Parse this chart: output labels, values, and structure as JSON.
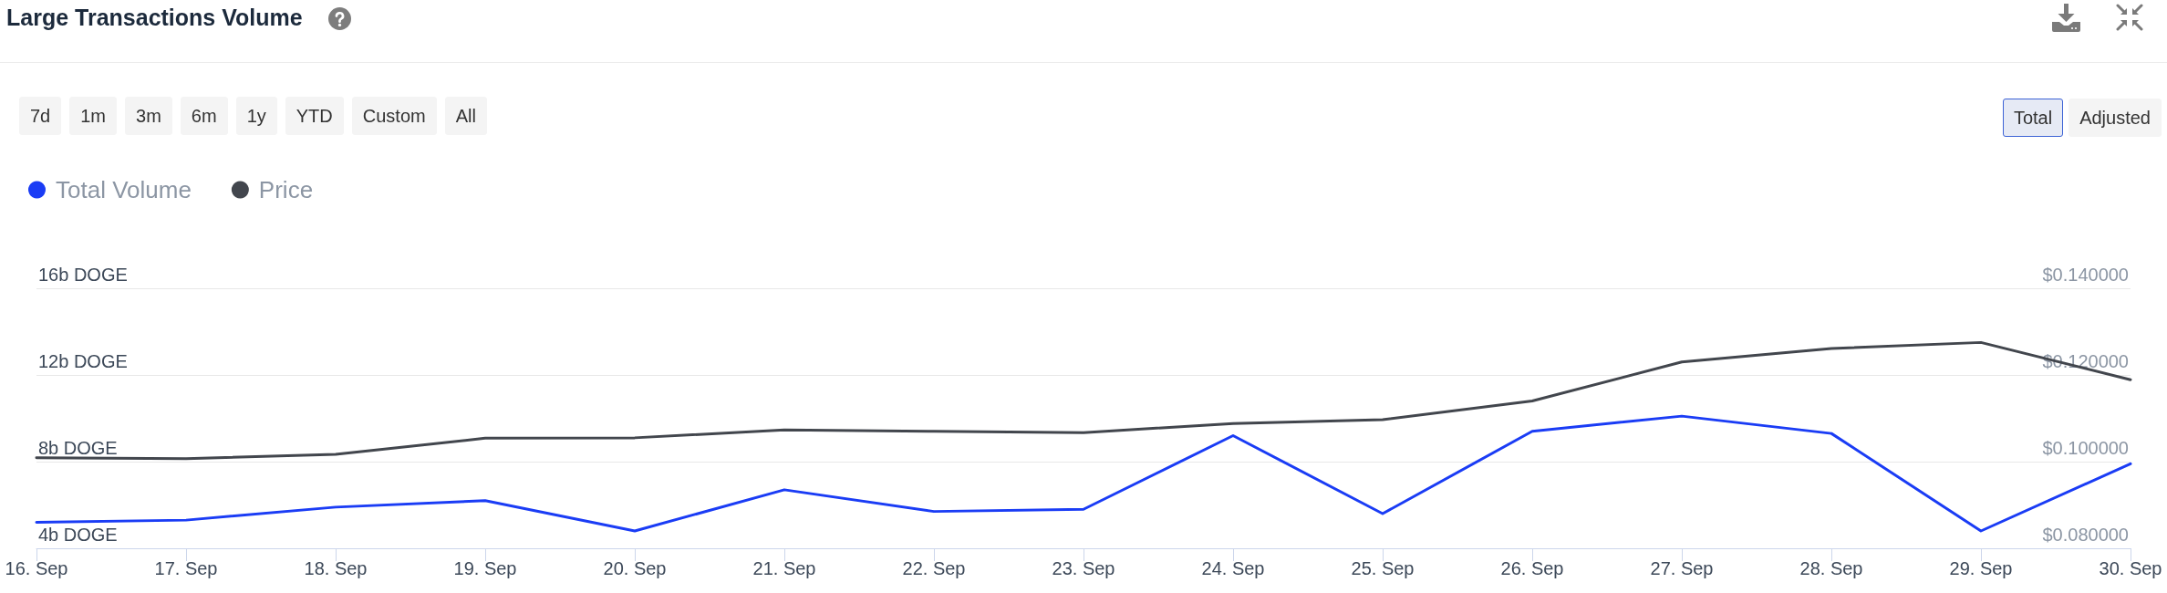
{
  "chart_data": {
    "type": "line",
    "title": "Large Transactions Volume",
    "annotations": [
      "7d",
      "1m",
      "3m",
      "6m",
      "1y",
      "YTD",
      "Custom",
      "All",
      "Total",
      "Adjusted"
    ],
    "categories": [
      "16. Sep",
      "17. Sep",
      "18. Sep",
      "19. Sep",
      "20. Sep",
      "21. Sep",
      "22. Sep",
      "23. Sep",
      "24. Sep",
      "25. Sep",
      "26. Sep",
      "27. Sep",
      "28. Sep",
      "29. Sep",
      "30. Sep"
    ],
    "series": [
      {
        "name": "Total Volume",
        "color": "#1a3cf5",
        "values": [
          5.2,
          5.3,
          5.9,
          6.2,
          4.8,
          6.7,
          5.7,
          5.8,
          9.2,
          5.6,
          9.4,
          10.1,
          9.3,
          4.8,
          7.9
        ]
      },
      {
        "name": "Price",
        "color": "#42464d",
        "axis": "y2",
        "values": [
          0.1009,
          0.1007,
          0.1017,
          0.1054,
          0.1055,
          0.1073,
          0.107,
          0.1067,
          0.1088,
          0.1097,
          0.114,
          0.123,
          0.1261,
          0.1275,
          0.1189
        ]
      }
    ],
    "ylim": [
      4,
      16
    ],
    "yticks": [
      {
        "value": 4,
        "label": "4b DOGE"
      },
      {
        "value": 8,
        "label": "8b DOGE"
      },
      {
        "value": 12,
        "label": "12b DOGE"
      },
      {
        "value": 16,
        "label": "16b DOGE"
      }
    ],
    "y2lim": [
      0.08,
      0.14
    ],
    "y2ticks": [
      {
        "value": 0.08,
        "label": "$0.080000"
      },
      {
        "value": 0.1,
        "label": "$0.100000"
      },
      {
        "value": 0.12,
        "label": "$0.120000"
      },
      {
        "value": 0.14,
        "label": "$0.140000"
      }
    ],
    "grid": "y",
    "legend": "top left",
    "marker": "none"
  }
}
